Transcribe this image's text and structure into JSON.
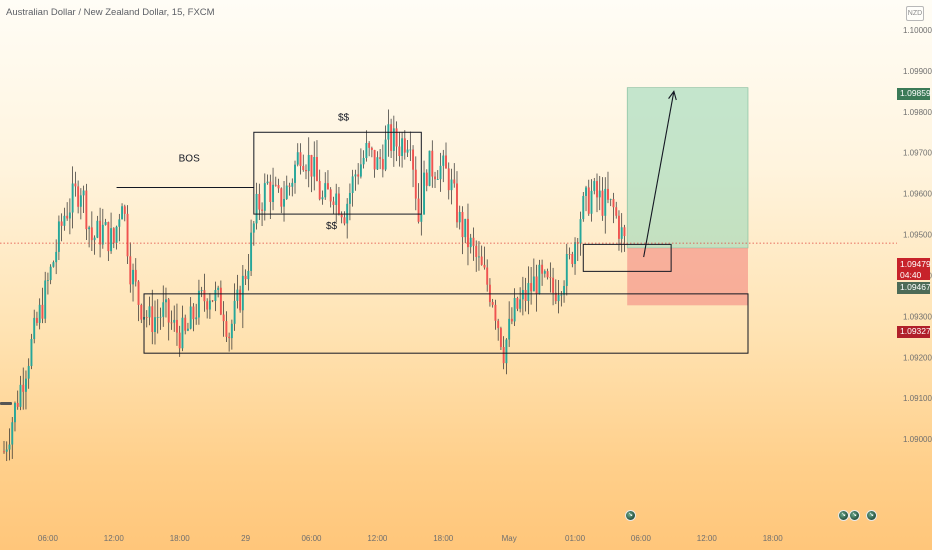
{
  "header": {
    "symbol_title": "Australian Dollar / New Zealand Dollar, 15, FXCM",
    "currency_badge": "NZD"
  },
  "price_tags": {
    "target": "1.09859",
    "current_price": "1.09479",
    "countdown": "04:40",
    "entry": "1.09467",
    "stop": "1.09327"
  },
  "colors": {
    "up": "#26a69a",
    "down": "#ef5350",
    "wick": "#2b2b2b",
    "profit_zone": "#9dd8b9",
    "loss_zone": "#f59b8c",
    "annotation_line": "#131722",
    "current_price_line": "#e0443c"
  },
  "icons": [
    "news-event-icon",
    "news-event-icon",
    "news-event-icon",
    "news-event-icon"
  ],
  "chart_data": {
    "type": "candlestick",
    "title": "",
    "xlabel": "",
    "ylabel": "",
    "ylim": [
      1.0885,
      1.1005
    ],
    "y_ticks": [
      {
        "value": 1.09,
        "label": "1.09000"
      },
      {
        "value": 1.091,
        "label": "1.09100"
      },
      {
        "value": 1.092,
        "label": "1.09200"
      },
      {
        "value": 1.093,
        "label": "1.09300"
      },
      {
        "value": 1.094,
        "label": "1.09400"
      },
      {
        "value": 1.095,
        "label": "1.09500"
      },
      {
        "value": 1.096,
        "label": "1.09600"
      },
      {
        "value": 1.097,
        "label": "1.09700"
      },
      {
        "value": 1.098,
        "label": "1.09800"
      },
      {
        "value": 1.099,
        "label": "1.09900"
      },
      {
        "value": 1.1,
        "label": "1.10000"
      }
    ],
    "bar_range": [
      0,
      288
    ],
    "x_ticks": [
      {
        "bar": 16,
        "label": "06:00"
      },
      {
        "bar": 40,
        "label": "12:00"
      },
      {
        "bar": 64,
        "label": "18:00"
      },
      {
        "bar": 88,
        "label": "29"
      },
      {
        "bar": 112,
        "label": "06:00"
      },
      {
        "bar": 136,
        "label": "12:00"
      },
      {
        "bar": 160,
        "label": "18:00"
      },
      {
        "bar": 184,
        "label": "May"
      },
      {
        "bar": 208,
        "label": "01:00"
      },
      {
        "bar": 232,
        "label": "06:00"
      },
      {
        "bar": 256,
        "label": "12:00"
      },
      {
        "bar": 280,
        "label": "18:00"
      }
    ],
    "price_path": [
      [
        0,
        1.0897
      ],
      [
        8,
        1.0918
      ],
      [
        16,
        1.0938
      ],
      [
        22,
        1.0955
      ],
      [
        28,
        1.0962
      ],
      [
        32,
        1.0949
      ],
      [
        36,
        1.0951
      ],
      [
        40,
        1.0948
      ],
      [
        43,
        1.096
      ],
      [
        46,
        1.0942
      ],
      [
        49,
        1.0934
      ],
      [
        53,
        1.0929
      ],
      [
        58,
        1.0931
      ],
      [
        62,
        1.0927
      ],
      [
        66,
        1.0925
      ],
      [
        70,
        1.0932
      ],
      [
        75,
        1.0936
      ],
      [
        80,
        1.0932
      ],
      [
        82,
        1.0926
      ],
      [
        86,
        1.0935
      ],
      [
        89,
        1.0944
      ],
      [
        92,
        1.0956
      ],
      [
        96,
        1.0962
      ],
      [
        100,
        1.0958
      ],
      [
        104,
        1.0962
      ],
      [
        108,
        1.0971
      ],
      [
        112,
        1.0967
      ],
      [
        116,
        1.0958
      ],
      [
        120,
        1.0961
      ],
      [
        124,
        1.0956
      ],
      [
        128,
        1.0965
      ],
      [
        132,
        1.097
      ],
      [
        136,
        1.0967
      ],
      [
        140,
        1.0973
      ],
      [
        144,
        1.0972
      ],
      [
        148,
        1.0975
      ],
      [
        151,
        1.0954
      ],
      [
        154,
        1.0966
      ],
      [
        158,
        1.0967
      ],
      [
        162,
        1.0964
      ],
      [
        166,
        1.0953
      ],
      [
        172,
        1.0944
      ],
      [
        178,
        1.0935
      ],
      [
        182,
        1.0922
      ],
      [
        186,
        1.0931
      ],
      [
        190,
        1.0935
      ],
      [
        194,
        1.0939
      ],
      [
        200,
        1.0936
      ],
      [
        206,
        1.0943
      ],
      [
        210,
        1.0955
      ],
      [
        214,
        1.096
      ],
      [
        218,
        1.0958
      ],
      [
        222,
        1.0956
      ],
      [
        226,
        1.0948
      ]
    ],
    "current_price": 1.09479,
    "annotations": [
      {
        "type": "hline",
        "label": "BOS",
        "x0": 41,
        "x1": 91,
        "y": 1.09615
      },
      {
        "type": "box",
        "label": "$$",
        "x0": 91,
        "x1": 152,
        "y0": 1.0955,
        "y1": 1.0975
      },
      {
        "type": "box",
        "label": "",
        "x0": 51,
        "x1": 271,
        "y0": 1.0921,
        "y1": 1.09355
      },
      {
        "type": "box",
        "label": "",
        "x0": 211,
        "x1": 243,
        "y0": 1.0941,
        "y1": 1.09476
      }
    ],
    "position": {
      "side": "long",
      "x0": 227,
      "x1": 271,
      "entry": 1.09467,
      "target": 1.09859,
      "stop": 1.09327
    },
    "projection_arrow": {
      "x0": 233,
      "y0": 1.09445,
      "x1": 244,
      "y1": 1.0985
    }
  }
}
